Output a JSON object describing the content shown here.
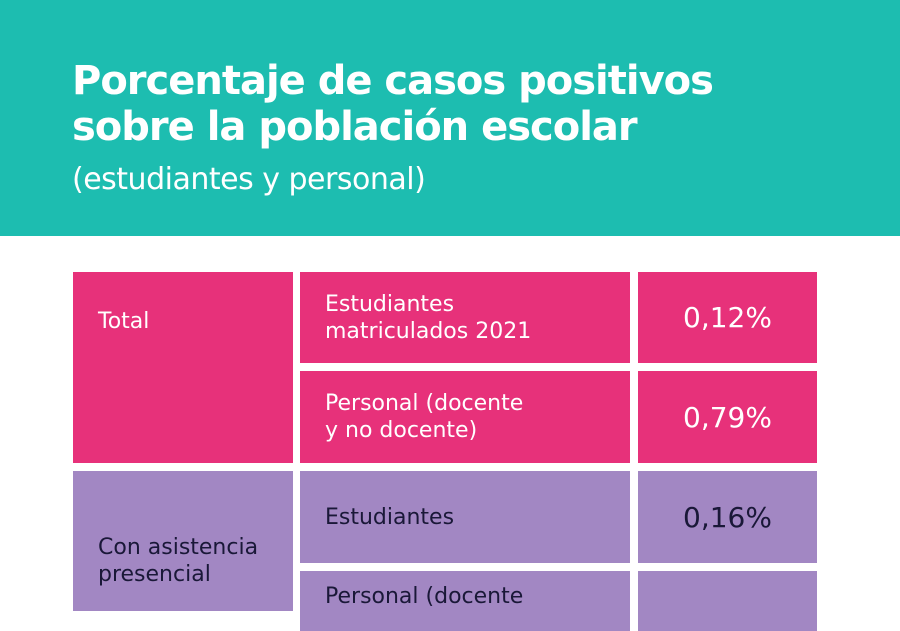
{
  "header": {
    "title_line1": "Porcentaje de casos positivos",
    "title_line2": "sobre la población escolar",
    "subtitle": "(estudiantes y personal)"
  },
  "colors": {
    "header": "#1dbdb0",
    "total": "#e7317a",
    "presencial": "#a287c3"
  },
  "table": [
    {
      "group": "Total",
      "rows": [
        {
          "label_l1": "Estudiantes",
          "label_l2": "matriculados 2021",
          "value": "0,12%"
        },
        {
          "label_l1": "Personal (docente",
          "label_l2": "y no docente)",
          "value": "0,79%"
        }
      ]
    },
    {
      "group_l1": "Con asistencia",
      "group_l2": "presencial",
      "rows": [
        {
          "label_l1": "Estudiantes",
          "value": "0,16%"
        },
        {
          "label_l1": "Personal (docente"
        }
      ]
    }
  ]
}
